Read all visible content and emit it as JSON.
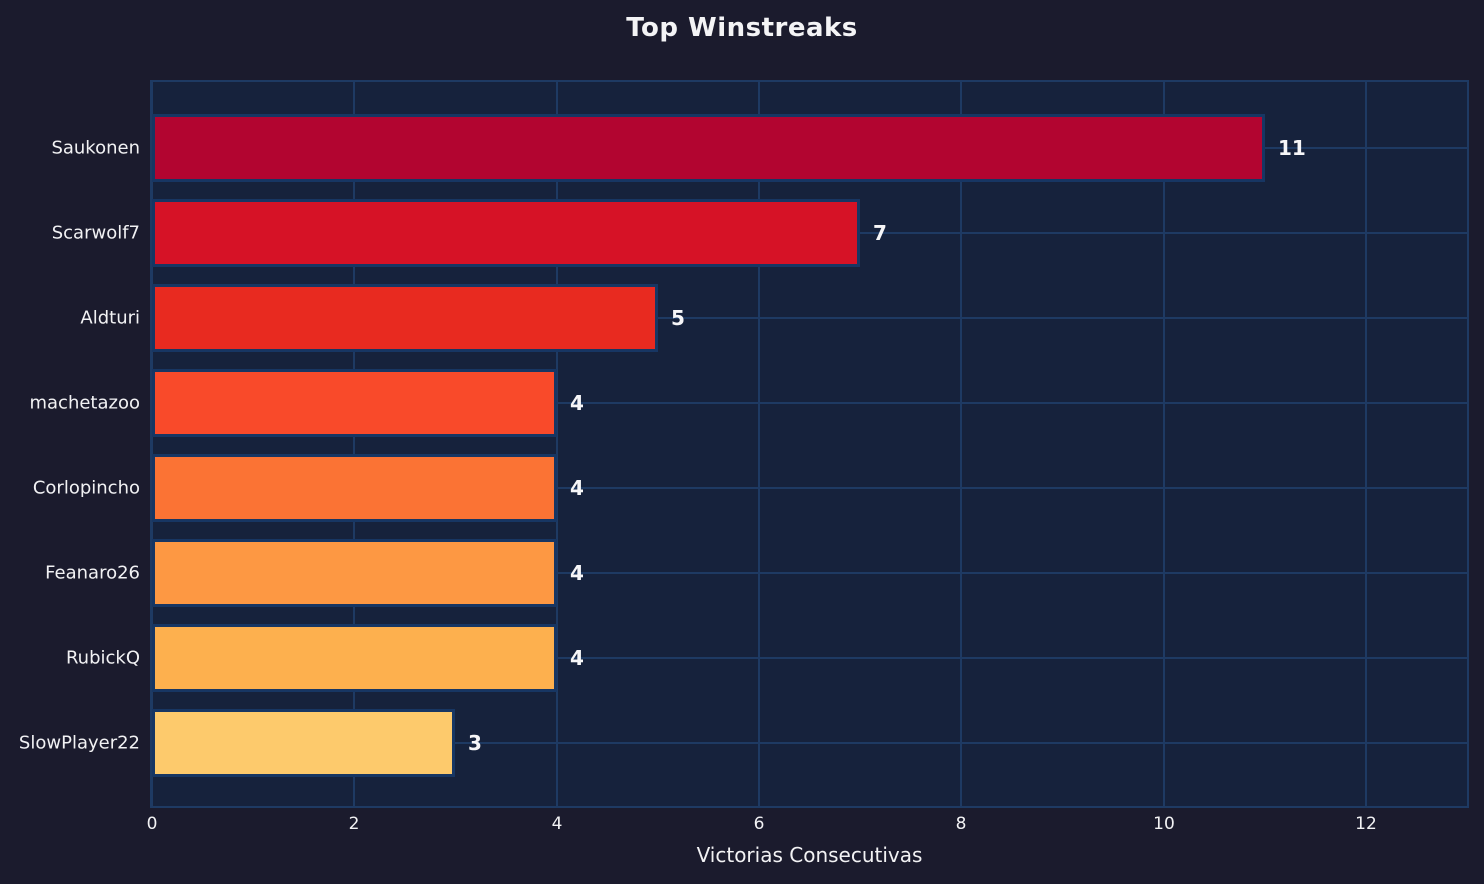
{
  "title": "Top Winstreaks",
  "chart_data": {
    "type": "bar",
    "orientation": "horizontal",
    "title": "Top Winstreaks",
    "xlabel": "Victorias Consecutivas",
    "ylabel": "",
    "categories": [
      "Saukonen",
      "Scarwolf7",
      "Aldturi",
      "machetazoo",
      "Corlopincho",
      "Feanaro26",
      "RubickQ",
      "SlowPlayer22"
    ],
    "values": [
      11,
      7,
      5,
      4,
      4,
      4,
      4,
      3
    ],
    "value_labels": [
      "11",
      "7",
      "5",
      "4",
      "4",
      "4",
      "4",
      "3"
    ],
    "bar_colors": [
      "#b20530",
      "#d61226",
      "#e82a20",
      "#f94a2a",
      "#fb7334",
      "#fd9843",
      "#fdb04e",
      "#fdca6c"
    ],
    "xlim": [
      0,
      13
    ],
    "xticks": [
      0,
      2,
      4,
      6,
      8,
      10,
      12
    ],
    "grid": true,
    "legend": false,
    "colors": {
      "background": "#1b1b2d",
      "plot_background": "#16223c",
      "gridline": "#1e3a63",
      "bar_edge": "#173663",
      "text": "#f2f2f4"
    }
  }
}
